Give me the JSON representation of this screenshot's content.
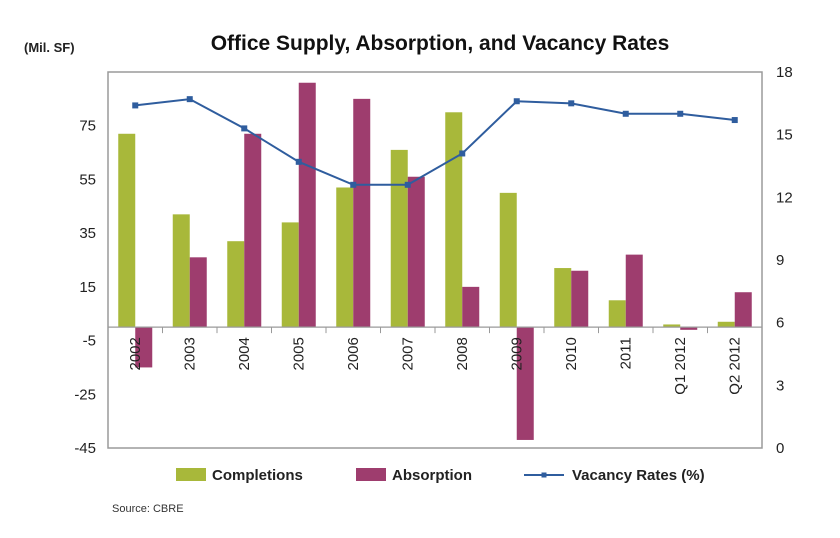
{
  "chart_data": {
    "type": "bar",
    "title": "Office Supply, Absorption, and Vacancy Rates",
    "y_left_unit": "(Mil. SF)",
    "source": "Source: CBRE",
    "categories": [
      "2002",
      "2003",
      "2004",
      "2005",
      "2006",
      "2007",
      "2008",
      "2009",
      "2010",
      "2011",
      "Q1 2012",
      "Q2 2012"
    ],
    "y_left": {
      "range": [
        -45,
        95
      ],
      "ticks": [
        "75",
        "55",
        "35",
        "15",
        "-5",
        "-25",
        "-45"
      ]
    },
    "y_right": {
      "range": [
        0,
        18
      ],
      "ticks": [
        "18",
        "15",
        "12",
        "9",
        "6",
        "3",
        "0"
      ]
    },
    "series": [
      {
        "name": "Completions",
        "type": "bar",
        "axis": "left",
        "color": "#a8b83a",
        "values": [
          72,
          42,
          32,
          39,
          52,
          66,
          80,
          50,
          22,
          10,
          1,
          2
        ]
      },
      {
        "name": "Absorption",
        "type": "bar",
        "axis": "left",
        "color": "#9e3d6e",
        "values": [
          -15,
          26,
          72,
          91,
          85,
          56,
          15,
          -42,
          21,
          27,
          -1,
          13
        ]
      },
      {
        "name": "Vacancy Rates (%)",
        "type": "line",
        "axis": "right",
        "color": "#2f5d9e",
        "values": [
          16.4,
          16.7,
          15.3,
          13.7,
          12.6,
          12.6,
          14.1,
          16.6,
          16.5,
          16.0,
          16.0,
          15.7
        ]
      }
    ],
    "legend_position": "bottom",
    "grid": false
  }
}
